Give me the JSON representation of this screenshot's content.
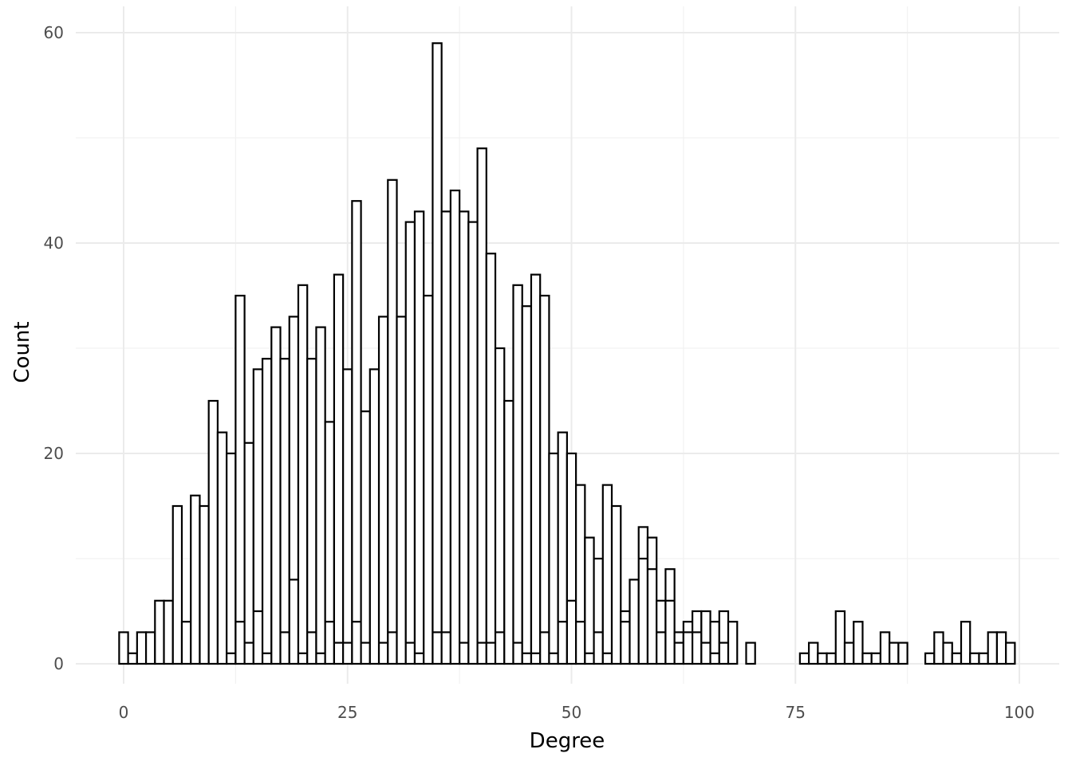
{
  "chart_data": {
    "type": "bar",
    "histogram": true,
    "title": "",
    "xlabel": "Degree",
    "ylabel": "Count",
    "bin_width": 1,
    "xlim": [
      0,
      100
    ],
    "ylim": [
      0,
      60
    ],
    "x_ticks": [
      0,
      25,
      50,
      75,
      100
    ],
    "y_ticks": [
      0,
      20,
      40,
      60
    ],
    "grid": true,
    "bar_fill": "#ffffff",
    "bar_stroke": "#000000",
    "values": [
      3,
      1,
      3,
      3,
      6,
      6,
      15,
      4,
      16,
      15,
      25,
      22,
      20,
      35,
      21,
      28,
      29,
      32,
      29,
      33,
      36,
      29,
      32,
      23,
      37,
      28,
      44,
      24,
      28,
      33,
      46,
      33,
      42,
      43,
      35,
      59,
      43,
      45,
      43,
      42,
      49,
      39,
      30,
      25,
      36,
      34,
      37,
      35,
      20,
      22,
      20,
      17,
      12,
      10,
      17,
      15,
      5,
      8,
      13,
      12,
      6,
      9,
      3,
      4,
      5,
      5,
      4,
      5,
      4,
      0,
      2,
      0,
      0,
      0,
      0,
      0,
      1,
      2,
      1,
      1,
      5,
      2,
      4,
      1,
      1,
      3,
      2,
      2,
      0,
      0,
      1,
      3,
      2,
      1,
      4,
      1,
      1,
      3,
      3,
      2
    ],
    "inner_values": [
      0,
      0,
      0,
      0,
      0,
      0,
      0,
      0,
      0,
      0,
      0,
      0,
      1,
      4,
      2,
      5,
      1,
      0,
      3,
      8,
      1,
      3,
      1,
      4,
      2,
      2,
      4,
      2,
      0,
      2,
      3,
      0,
      2,
      1,
      0,
      3,
      3,
      0,
      2,
      0,
      2,
      2,
      3,
      0,
      2,
      1,
      1,
      3,
      1,
      4,
      6,
      4,
      1,
      3,
      1,
      0,
      4,
      0,
      10,
      9,
      3,
      6,
      2,
      3,
      3,
      2,
      1,
      2,
      0,
      0,
      0,
      0,
      0,
      0,
      0,
      0,
      0,
      0,
      0,
      0,
      0,
      0,
      0,
      0,
      0,
      0,
      0,
      0,
      0,
      0,
      0,
      0,
      0,
      0,
      0,
      0,
      0,
      0,
      0,
      0
    ]
  }
}
